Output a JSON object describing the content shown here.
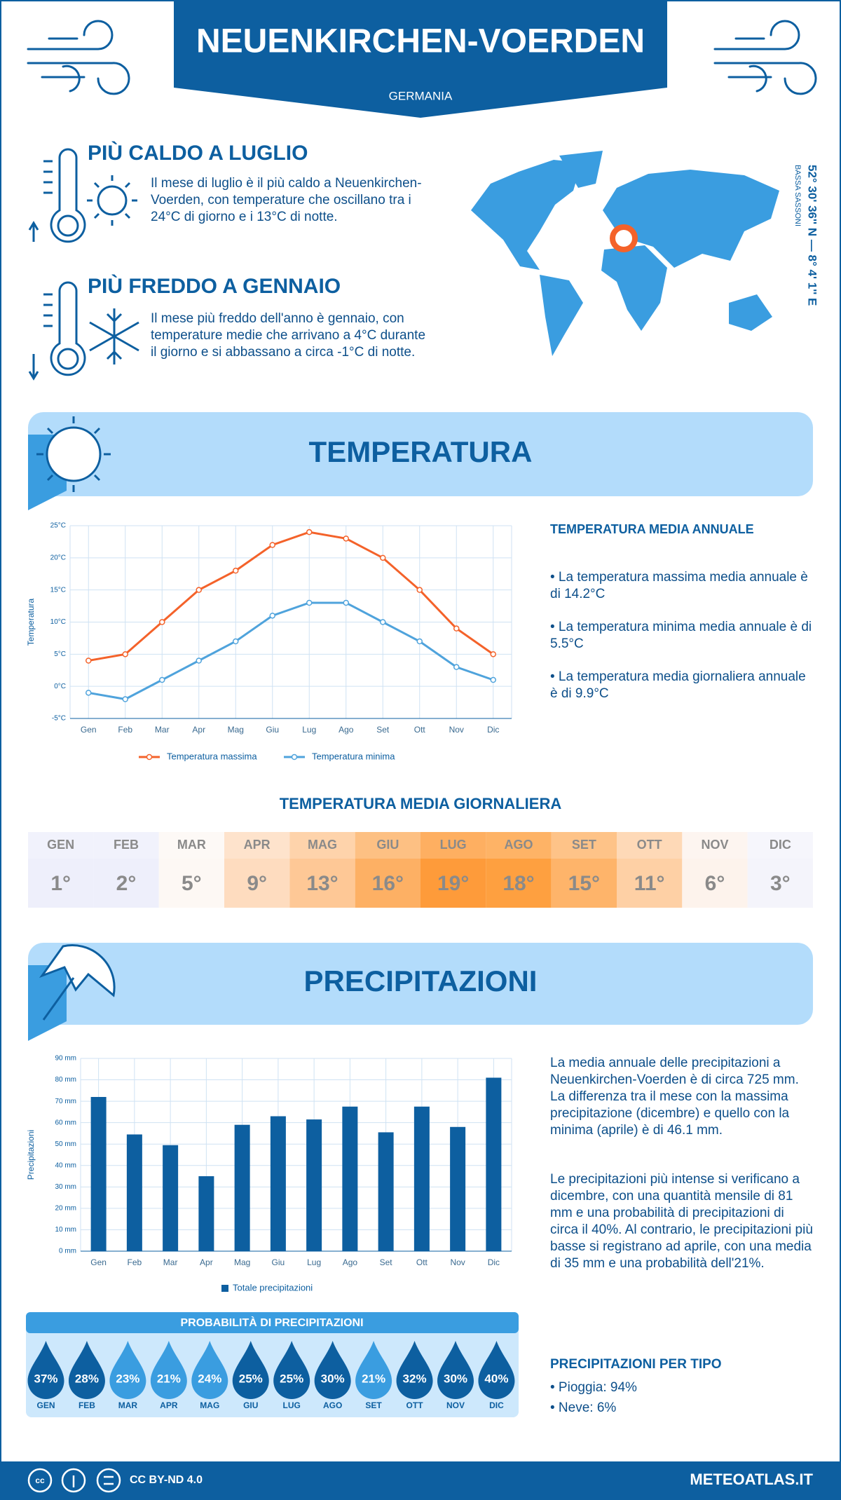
{
  "header": {
    "title": "NEUENKIRCHEN-VOERDEN",
    "subtitle": "GERMANIA"
  },
  "highlights": [
    {
      "title": "PIÙ CALDO A LUGLIO",
      "text": "Il mese di luglio è il più caldo a Neuenkirchen-Voerden, con temperature che oscillano tra i 24°C di giorno e i 13°C di notte."
    },
    {
      "title": "PIÙ FREDDO A GENNAIO",
      "text": "Il mese più freddo dell'anno è gennaio, con temperature medie che arrivano a 4°C durante il giorno e si abbassano a circa -1°C di notte."
    }
  ],
  "location": {
    "coordinates": "52° 30' 36'' N — 8° 4' 1'' E",
    "region": "BASSA SASSONI"
  },
  "sections": {
    "temperature": "TEMPERATURA",
    "precipitation": "PRECIPITAZIONI"
  },
  "chart_data": [
    {
      "type": "line",
      "y_label": "Temperatura",
      "categories": [
        "Gen",
        "Feb",
        "Mar",
        "Apr",
        "Mag",
        "Giu",
        "Lug",
        "Ago",
        "Set",
        "Ott",
        "Nov",
        "Dic"
      ],
      "series": [
        {
          "name": "Temperatura massima",
          "color": "#f4622a",
          "values": [
            4,
            5,
            10,
            15,
            18,
            22,
            24,
            23,
            20,
            15,
            9,
            5
          ]
        },
        {
          "name": "Temperatura minima",
          "color": "#4fa3dc",
          "values": [
            -1,
            -2,
            1,
            4,
            7,
            11,
            13,
            13,
            10,
            7,
            3,
            1
          ]
        }
      ],
      "ylim": [
        -5,
        25
      ],
      "yticks": [
        {
          "value": -5,
          "label": "-5°C"
        },
        {
          "value": 0,
          "label": "0°C"
        },
        {
          "value": 5,
          "label": "5°C"
        },
        {
          "value": 10,
          "label": "10°C"
        },
        {
          "value": 15,
          "label": "15°C"
        },
        {
          "value": 20,
          "label": "20°C"
        },
        {
          "value": 25,
          "label": "25°C"
        }
      ],
      "grid": true
    },
    {
      "type": "bar",
      "y_label": "Precipitazioni",
      "categories": [
        "Gen",
        "Feb",
        "Mar",
        "Apr",
        "Mag",
        "Giu",
        "Lug",
        "Ago",
        "Set",
        "Ott",
        "Nov",
        "Dic"
      ],
      "series": [
        {
          "name": "Totale precipitazioni",
          "color": "#0d5fa0",
          "values": [
            72,
            54.5,
            49.5,
            35,
            59,
            63,
            61.5,
            67.5,
            55.5,
            67.5,
            58,
            81
          ]
        }
      ],
      "ylim": [
        0,
        90
      ],
      "yticks": [
        {
          "value": 0,
          "label": "0 mm"
        },
        {
          "value": 10,
          "label": "10 mm"
        },
        {
          "value": 20,
          "label": "20 mm"
        },
        {
          "value": 30,
          "label": "30 mm"
        },
        {
          "value": 40,
          "label": "40 mm"
        },
        {
          "value": 50,
          "label": "50 mm"
        },
        {
          "value": 60,
          "label": "60 mm"
        },
        {
          "value": 70,
          "label": "70 mm"
        },
        {
          "value": 80,
          "label": "80 mm"
        },
        {
          "value": 90,
          "label": "90 mm"
        }
      ],
      "grid": true
    }
  ],
  "annual_temperature": {
    "title": "TEMPERATURA MEDIA ANNUALE",
    "items": [
      "• La temperatura massima media annuale è di 14.2°C",
      "• La temperatura minima media annuale è di 5.5°C",
      "• La temperatura media giornaliera annuale è di 9.9°C"
    ]
  },
  "daily_temperature": {
    "title": "TEMPERATURA MEDIA GIORNALIERA",
    "months": [
      "GEN",
      "FEB",
      "MAR",
      "APR",
      "MAG",
      "GIU",
      "LUG",
      "AGO",
      "SET",
      "OTT",
      "NOV",
      "DIC"
    ],
    "values": [
      1,
      2,
      5,
      9,
      13,
      16,
      19,
      18,
      15,
      11,
      6,
      3
    ],
    "value_labels": [
      "1°",
      "2°",
      "5°",
      "9°",
      "13°",
      "16°",
      "19°",
      "18°",
      "15°",
      "11°",
      "6°",
      "3°"
    ],
    "colors": [
      "#eeeffb",
      "#eeeffb",
      "#fdf8f4",
      "#fedcbf",
      "#fec896",
      "#fdb064",
      "#fe9b3a",
      "#fea040",
      "#feb46a",
      "#fed0a5",
      "#fdf3ec",
      "#f4f4fb"
    ]
  },
  "precipitation_summary": {
    "paragraphs": [
      "La media annuale delle precipitazioni a Neuenkirchen-Voerden è di circa 725 mm. La differenza tra il mese con la massima precipitazione (dicembre) e quello con la minima (aprile) è di 46.1 mm.",
      "Le precipitazioni più intense si verificano a dicembre, con una quantità mensile di 81 mm e una probabilità di precipitazioni di circa il 40%. Al contrario, le precipitazioni più basse si registrano ad aprile, con una media di 35 mm e una probabilità dell'21%."
    ]
  },
  "precipitation_probability": {
    "title": "PROBABILITÀ DI PRECIPITAZIONI",
    "months": [
      "GEN",
      "FEB",
      "MAR",
      "APR",
      "MAG",
      "GIU",
      "LUG",
      "AGO",
      "SET",
      "OTT",
      "NOV",
      "DIC"
    ],
    "values": [
      37,
      28,
      23,
      21,
      24,
      25,
      25,
      30,
      21,
      32,
      30,
      40
    ],
    "value_labels": [
      "37%",
      "28%",
      "23%",
      "21%",
      "24%",
      "25%",
      "25%",
      "30%",
      "21%",
      "32%",
      "30%",
      "40%"
    ],
    "colors": [
      "#0d5fa0",
      "#0d5fa0",
      "#3a9de0",
      "#3a9de0",
      "#3a9de0",
      "#0d5fa0",
      "#0d5fa0",
      "#0d5fa0",
      "#3a9de0",
      "#0d5fa0",
      "#0d5fa0",
      "#0d5fa0"
    ]
  },
  "precipitation_type": {
    "title": "PRECIPITAZIONI PER TIPO",
    "items": [
      "• Pioggia: 94%",
      "• Neve: 6%"
    ]
  },
  "footer": {
    "license": "CC BY-ND 4.0",
    "site": "METEOATLAS.IT"
  }
}
